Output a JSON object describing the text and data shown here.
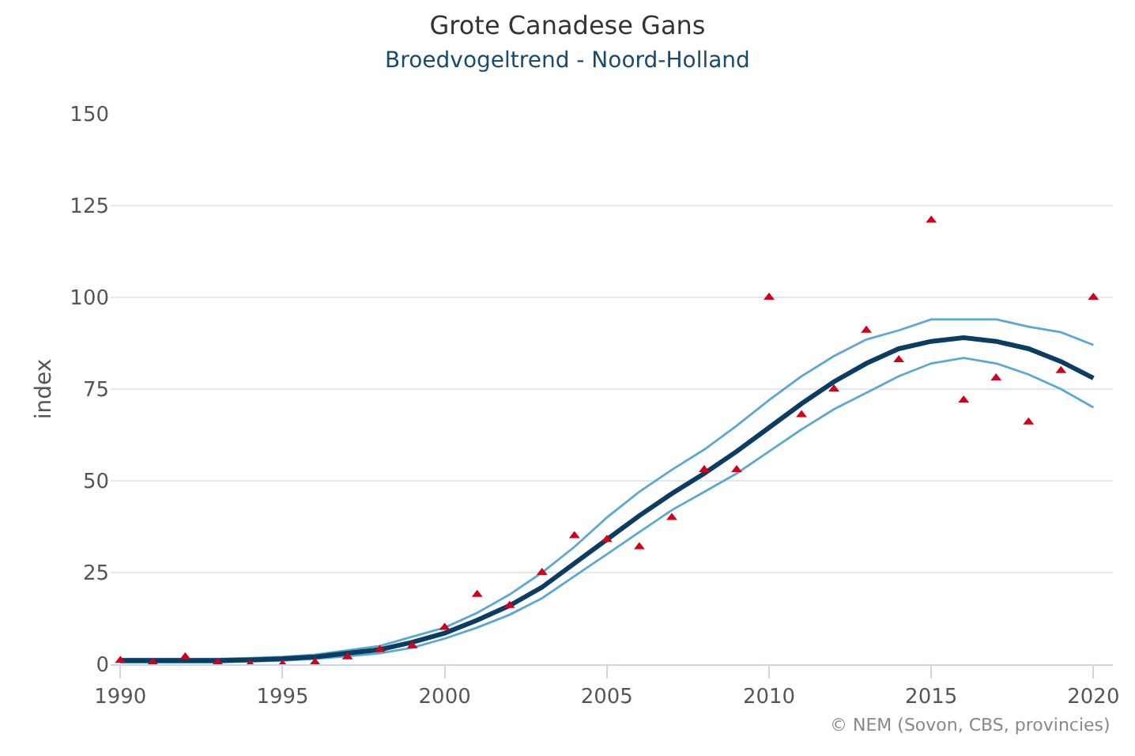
{
  "chart_data": {
    "type": "line",
    "title": "Grote Canadese Gans",
    "subtitle": "Broedvogeltrend - Noord-Holland",
    "ylabel": "index",
    "x": [
      1990,
      1991,
      1992,
      1993,
      1994,
      1995,
      1996,
      1997,
      1998,
      1999,
      2000,
      2001,
      2002,
      2003,
      2004,
      2005,
      2006,
      2007,
      2008,
      2009,
      2010,
      2011,
      2012,
      2013,
      2014,
      2015,
      2016,
      2017,
      2018,
      2019,
      2020
    ],
    "series": [
      {
        "color": "#5ba8d2",
        "values": [
          1.5,
          1.5,
          1.5,
          1.5,
          1.7,
          2,
          2.6,
          3.8,
          5,
          7.5,
          10,
          14,
          19,
          25,
          32,
          40,
          47,
          53,
          58.5,
          65,
          72,
          78.5,
          84,
          88.5,
          91,
          94,
          94,
          94,
          92,
          90.5,
          87
        ]
      },
      {
        "color": "#5ba8d2",
        "values": [
          0.5,
          0.5,
          0.5,
          0.5,
          0.8,
          1,
          1.5,
          2.2,
          3,
          4.5,
          7,
          10,
          13.5,
          18,
          24,
          30,
          36,
          42,
          47,
          52,
          58,
          64,
          69.5,
          74,
          78.5,
          82,
          83.5,
          82,
          79,
          75,
          70
        ]
      },
      {
        "color": "#0b3d63",
        "values": [
          1,
          1,
          1,
          1,
          1.2,
          1.5,
          2,
          3,
          4,
          6,
          8.5,
          12,
          16,
          21,
          27.5,
          34,
          40.5,
          46.5,
          52,
          58,
          64.5,
          71,
          77,
          82,
          86,
          88,
          89,
          88,
          86,
          82.5,
          78
        ]
      },
      {
        "type": "scatter",
        "color": "#d0021b",
        "marker": "triangle",
        "values": [
          1,
          0.5,
          2,
          0.5,
          0,
          0,
          0.5,
          2,
          4,
          5,
          10,
          19,
          16,
          25,
          35,
          34,
          32,
          40,
          53,
          53,
          100,
          68,
          75,
          91,
          83,
          121,
          72,
          78,
          66,
          80,
          100
        ]
      }
    ],
    "xlim": [
      1989.7,
      2020.6
    ],
    "xticks": [
      1990,
      1995,
      2000,
      2005,
      2010,
      2015,
      2020
    ],
    "ylim": [
      0,
      150
    ],
    "yticks": [
      0,
      25,
      50,
      75,
      100,
      125,
      150
    ],
    "grid": "y",
    "annotations": [
      "© NEM (Sovon, CBS, provincies)"
    ]
  }
}
